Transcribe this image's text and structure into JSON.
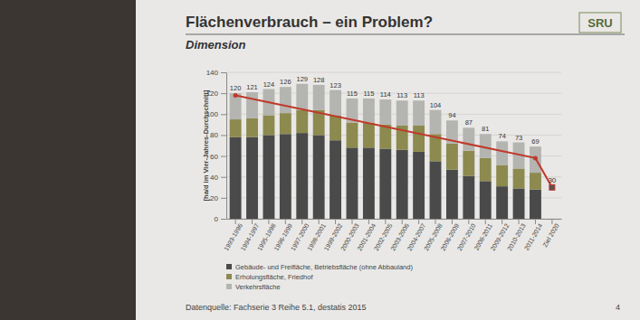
{
  "chart_data": {
    "type": "bar",
    "title": "Flächenverbrauch – ein Problem?",
    "subtitle": "Dimension",
    "logo": "SRU",
    "source": "Datenquelle: Fachserie 3 Reihe 5.1, destatis 2015",
    "page_number": "4",
    "y_label": "[ha/d im Vier-Jahres-Durchschnitt]",
    "stacked": true,
    "grid": true,
    "data_labels": true,
    "legend": "bottom",
    "categories": [
      "1993-1996",
      "1994-1997",
      "1995-1998",
      "1996-1999",
      "1997-2000",
      "1998-2001",
      "1999-2002",
      "2000-2003",
      "2001-2004",
      "2002-2005",
      "2003-2006",
      "2004-2007",
      "2005-2008",
      "2006-2009",
      "2007-2010",
      "2008-2011",
      "2009-2012",
      "2010-2013",
      "2011-2014",
      "Ziel 2020"
    ],
    "series": [
      {
        "name": "Gebäude- und Freifläche, Betriebsfläche (ohne Abbauland)",
        "color": "#4a4a4a",
        "values": [
          78,
          78,
          80,
          81,
          82,
          80,
          75,
          68,
          68,
          67,
          66,
          64,
          55,
          47,
          41,
          36,
          31,
          29,
          28,
          null
        ]
      },
      {
        "name": "Erholungsfläche, Friedhof",
        "color": "#8c8a4e",
        "values": [
          17,
          18,
          19,
          20,
          22,
          24,
          24,
          24,
          24,
          23,
          23,
          25,
          26,
          25,
          24,
          22,
          20,
          19,
          16,
          null
        ]
      },
      {
        "name": "Verkehrsfläche",
        "color": "#b4b4b0",
        "values": [
          25,
          25,
          25,
          25,
          25,
          24,
          24,
          23,
          23,
          24,
          24,
          24,
          23,
          22,
          22,
          23,
          23,
          25,
          25,
          null
        ]
      }
    ],
    "totals": [
      120,
      121,
      124,
      126,
      129,
      128,
      123,
      115,
      115,
      114,
      113,
      113,
      104,
      94,
      87,
      81,
      74,
      73,
      69,
      null
    ],
    "trend": {
      "type": "line",
      "color": "#c0392b",
      "marker": "circle",
      "x": [
        "1993-1996",
        "2011-2014",
        "Ziel 2020"
      ],
      "values": [
        118,
        58,
        30
      ]
    },
    "target": {
      "category": "Ziel 2020",
      "value": 30,
      "color": "#c0392b",
      "marker": "square"
    },
    "ylim": [
      0,
      140
    ],
    "yticks": [
      0,
      20,
      40,
      60,
      80,
      100,
      120,
      140
    ]
  }
}
